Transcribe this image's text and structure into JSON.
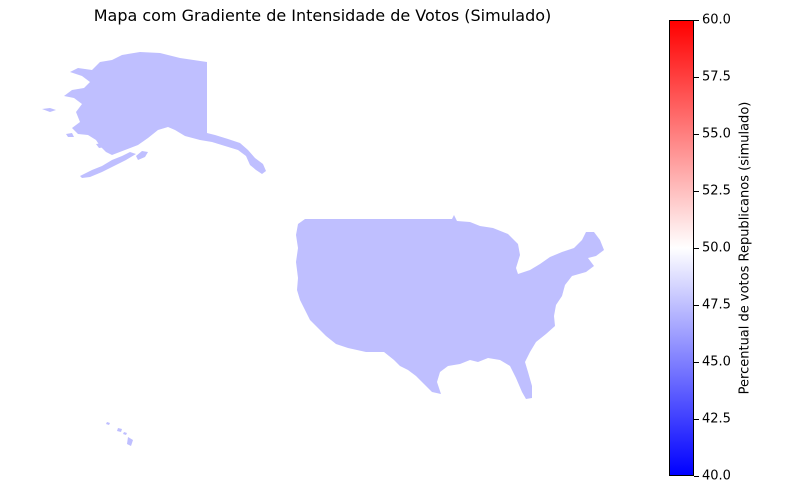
{
  "title": "Mapa com Gradiente de Intensidade de Votos (Simulado)",
  "map": {
    "regions": [
      {
        "name": "Alaska",
        "republican_vote_pct": 48.4
      },
      {
        "name": "Contiguous United States",
        "republican_vote_pct": 48.4
      },
      {
        "name": "Hawaii",
        "republican_vote_pct": 48.4
      }
    ],
    "region_fill": "#bfbfff"
  },
  "colorbar": {
    "label": "Percentual de votos Republicanos (simulado)",
    "min": 40.0,
    "max": 60.0,
    "ticks": [
      "40.0",
      "42.5",
      "45.0",
      "47.5",
      "50.0",
      "52.5",
      "55.0",
      "57.5",
      "60.0"
    ],
    "colormap": [
      "#0000ff",
      "#ffffff",
      "#ff0000"
    ]
  }
}
